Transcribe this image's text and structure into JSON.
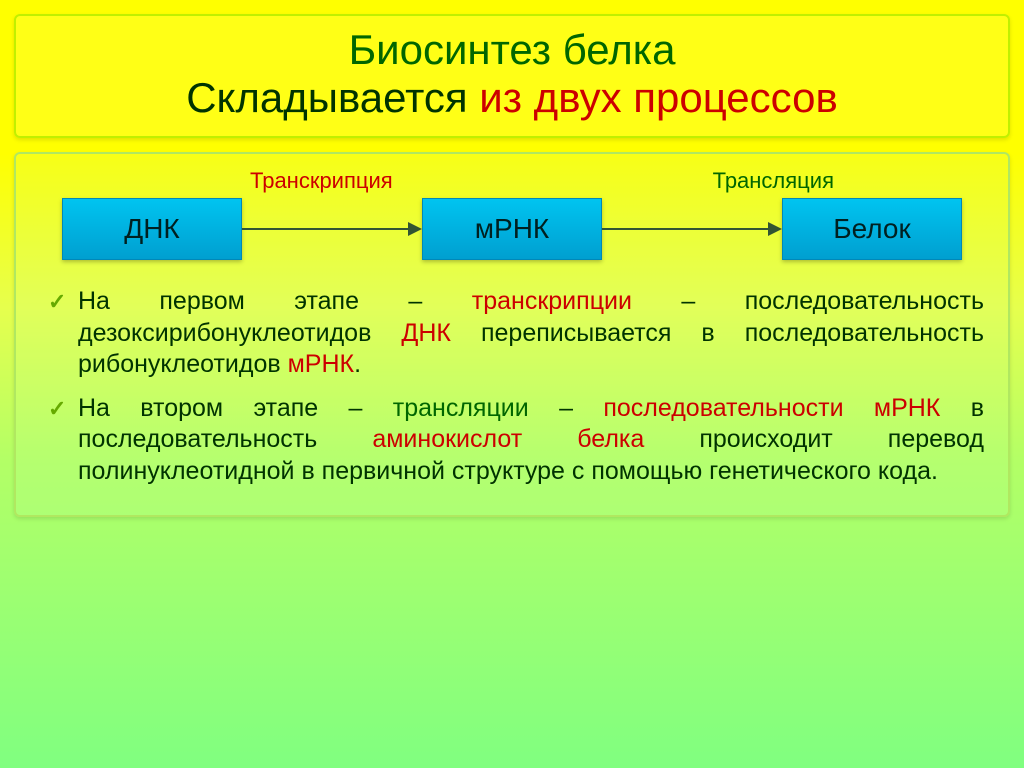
{
  "title": {
    "line1": "Биосинтез белка",
    "line2_dark": "Складывается",
    "line2_red": "из двух процессов",
    "color_green": "#006600",
    "color_dark": "#003300",
    "color_red": "#cc0000"
  },
  "flow": {
    "label_left": "Транскрипция",
    "label_right": "Трансляция",
    "node1": "ДНК",
    "node2": "мРНК",
    "node3": "Белок",
    "node_bg": "#00b0e0",
    "node_border": "#0088b8",
    "arrow_color": "#335533"
  },
  "bullets": [
    {
      "parts": [
        {
          "t": "На первом этапе – ",
          "c": "dark"
        },
        {
          "t": "транскрипции",
          "c": "red"
        },
        {
          "t": " – последовательность дезоксирибонуклеотидов ",
          "c": "dark"
        },
        {
          "t": "ДНК",
          "c": "red"
        },
        {
          "t": " переписывается в последовательность рибонуклеотидов ",
          "c": "dark"
        },
        {
          "t": "мРНК",
          "c": "red"
        },
        {
          "t": ".",
          "c": "dark"
        }
      ]
    },
    {
      "parts": [
        {
          "t": "На втором этапе – ",
          "c": "dark"
        },
        {
          "t": "трансляции",
          "c": "green"
        },
        {
          "t": " – ",
          "c": "dark"
        },
        {
          "t": "последовательности мРНК",
          "c": "red"
        },
        {
          "t": " в последовательность ",
          "c": "dark"
        },
        {
          "t": "аминокислот белка",
          "c": "red"
        },
        {
          "t": " происходит перевод полинуклеотидной в первичной структуре с помощью генетического кода.",
          "c": "dark"
        }
      ]
    }
  ],
  "style": {
    "background_gradient": [
      "#ffff00",
      "#80ff80"
    ],
    "body_fontsize": 25,
    "title_fontsize": 42,
    "flow_label_fontsize": 22,
    "node_fontsize": 28
  }
}
